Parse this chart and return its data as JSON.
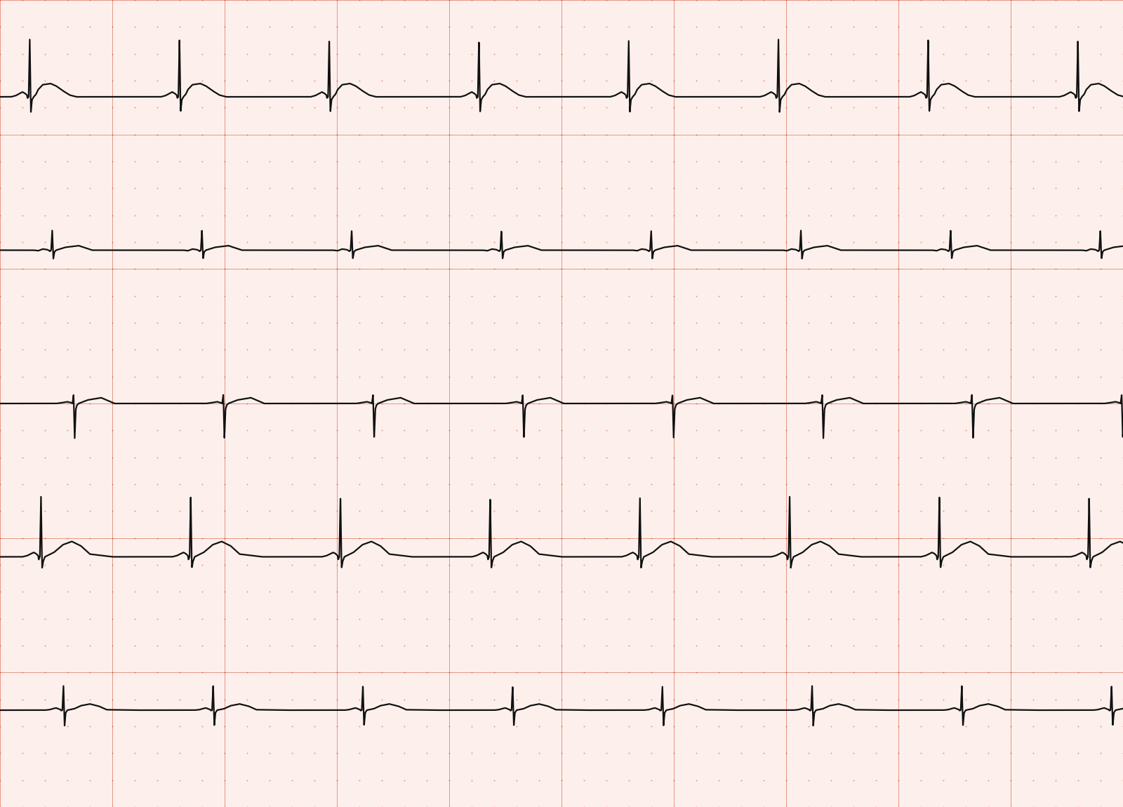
{
  "background_color": "#fdf0ec",
  "grid_major_color": "#cc3311",
  "grid_minor_dot_color": "#e06644",
  "ecg_color": "#111111",
  "ecg_linewidth": 1.6,
  "n_rows": 5,
  "fig_width": 16.0,
  "fig_height": 11.5,
  "dpi": 100,
  "major_linewidth": 0.6,
  "major_alpha": 0.55,
  "dot_size": 2.0,
  "dot_alpha": 0.65,
  "watermark_color": "#ccddee"
}
